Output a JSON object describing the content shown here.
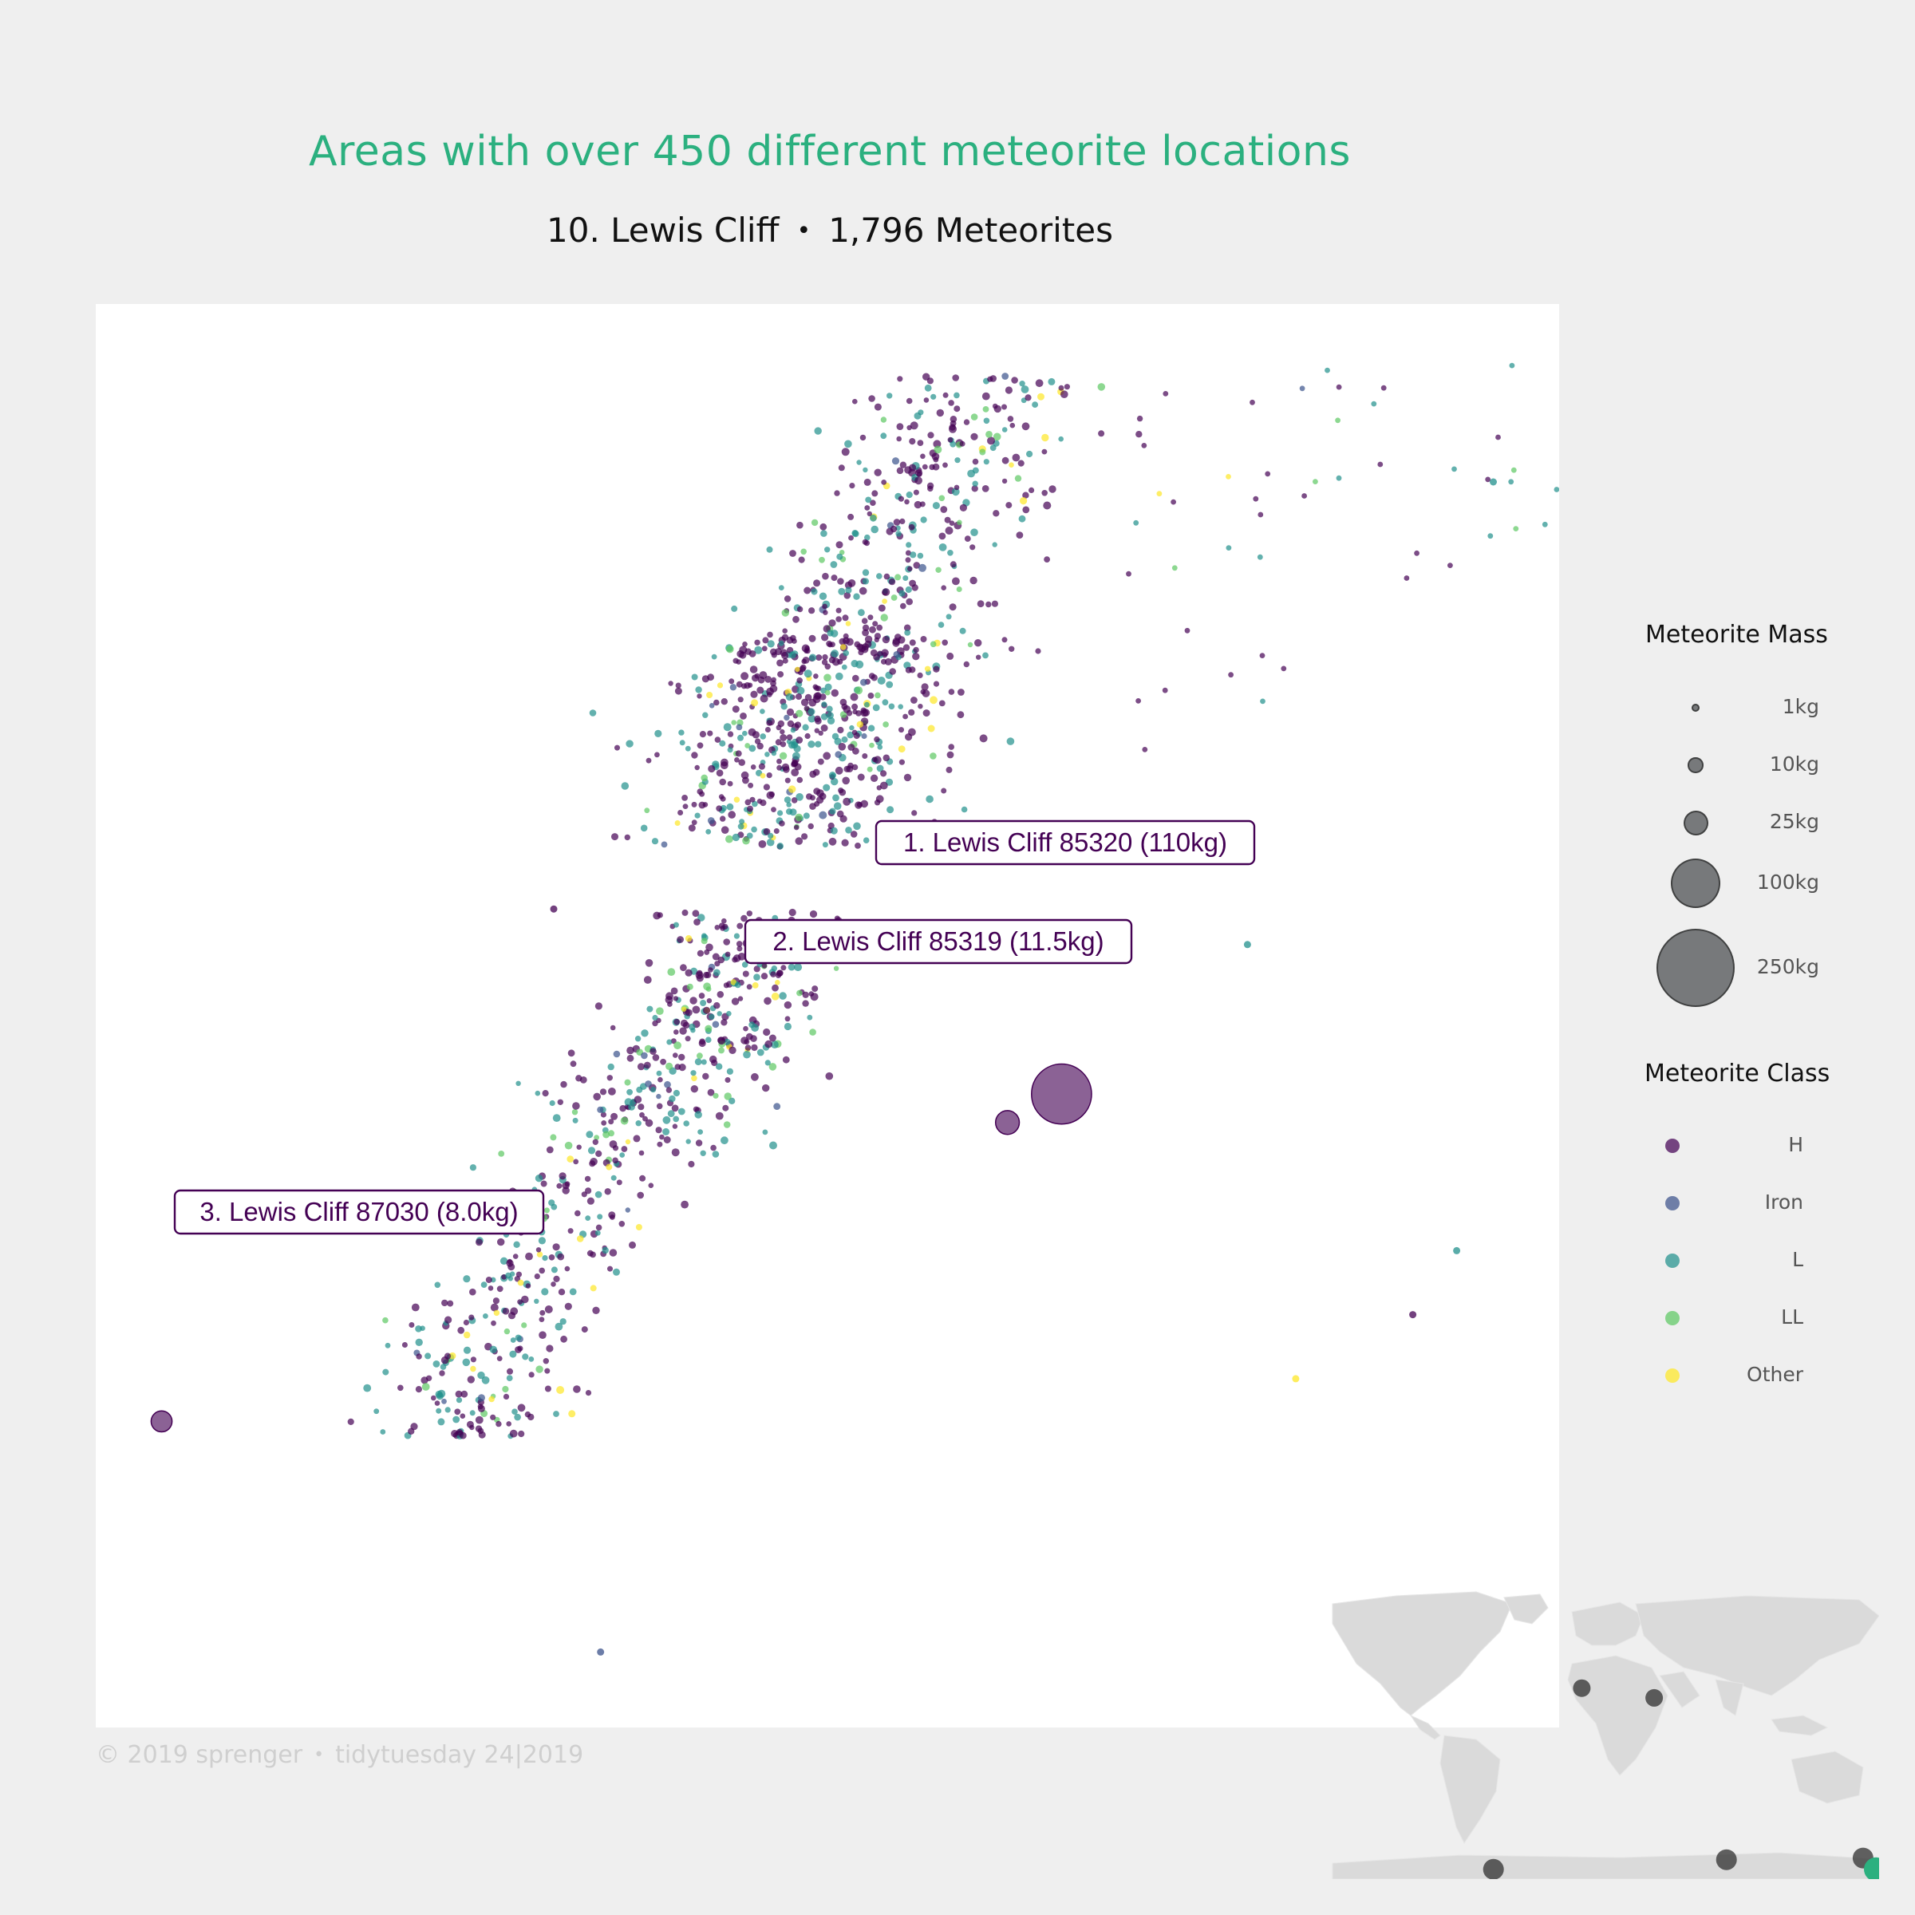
{
  "header": {
    "title": "Areas with over 450 different meteorite locations",
    "place": "10. Lewis Cliff",
    "separator": "•",
    "count": "1,796 Meteorites"
  },
  "caption": {
    "author": "© 2019 sprenger",
    "separator": "•",
    "source": "tidytuesday 24|2019"
  },
  "colors": {
    "title": "#2bb07f",
    "H": "#440154",
    "Iron": "#3b528b",
    "L": "#21908c",
    "LL": "#5dc863",
    "Other": "#fde725",
    "highlight": "#2bb07f",
    "annotation_text": "#440154"
  },
  "annotations": [
    {
      "label": "1. Lewis Cliff 85320 (110kg)",
      "name": "Lewis Cliff 85320",
      "mass_kg": 110,
      "class": "H",
      "lon": 0.66,
      "lat": 0.555
    },
    {
      "label": "2. Lewis Cliff 85319 (11.5kg)",
      "name": "Lewis Cliff 85319",
      "mass_kg": 11.5,
      "class": "H",
      "lon": 0.623,
      "lat": 0.575
    },
    {
      "label": "3. Lewis Cliff 87030 (8.0kg)",
      "name": "Lewis Cliff 87030",
      "mass_kg": 8.0,
      "class": "H",
      "lon": 0.045,
      "lat": 0.785
    }
  ],
  "legend_mass": {
    "title": "Meteorite Mass",
    "items": [
      {
        "label": "1kg",
        "kg": 1
      },
      {
        "label": "10kg",
        "kg": 10
      },
      {
        "label": "25kg",
        "kg": 25
      },
      {
        "label": "100kg",
        "kg": 100
      },
      {
        "label": "250kg",
        "kg": 250
      }
    ]
  },
  "legend_class": {
    "title": "Meteorite Class",
    "items": [
      {
        "label": "H",
        "class": "H"
      },
      {
        "label": "Iron",
        "class": "Iron"
      },
      {
        "label": "L",
        "class": "L"
      },
      {
        "label": "LL",
        "class": "LL"
      },
      {
        "label": "Other",
        "class": "Other"
      }
    ]
  },
  "chart_data": {
    "type": "scatter",
    "title": "Areas with over 450 different meteorite locations",
    "subtitle": "10. Lewis Cliff • 1,796 Meteorites",
    "series_classes": [
      "H",
      "Iron",
      "L",
      "LL",
      "Other"
    ],
    "total_points": 1796,
    "note": "Point cloud forms a curved band from lower-left to upper-right; positions shown are relative 0–1 data coordinates in the plotted extent.",
    "outliers": [
      {
        "class": "H",
        "lon": 0.313,
        "lat": 0.425
      },
      {
        "class": "Iron",
        "lon": 0.345,
        "lat": 0.947
      },
      {
        "class": "L",
        "lon": 0.787,
        "lat": 0.45
      },
      {
        "class": "H",
        "lon": 0.9,
        "lat": 0.71
      },
      {
        "class": "L",
        "lon": 0.93,
        "lat": 0.665
      },
      {
        "class": "Other",
        "lon": 0.82,
        "lat": 0.755
      },
      {
        "class": "L",
        "lon": 0.955,
        "lat": 0.125
      }
    ]
  },
  "minimap": {
    "description": "world-map-inset",
    "sites": [
      {
        "kind": "other-area",
        "lon": -5,
        "lat": 28
      },
      {
        "kind": "other-area",
        "lon": 40,
        "lat": 22
      },
      {
        "kind": "other-area",
        "lon": 85,
        "lat": -78
      },
      {
        "kind": "other-area",
        "lon": 170,
        "lat": -77
      },
      {
        "kind": "other-area",
        "lon": -60,
        "lat": -84
      },
      {
        "kind": "current",
        "lon": 178,
        "lat": -84
      }
    ]
  }
}
